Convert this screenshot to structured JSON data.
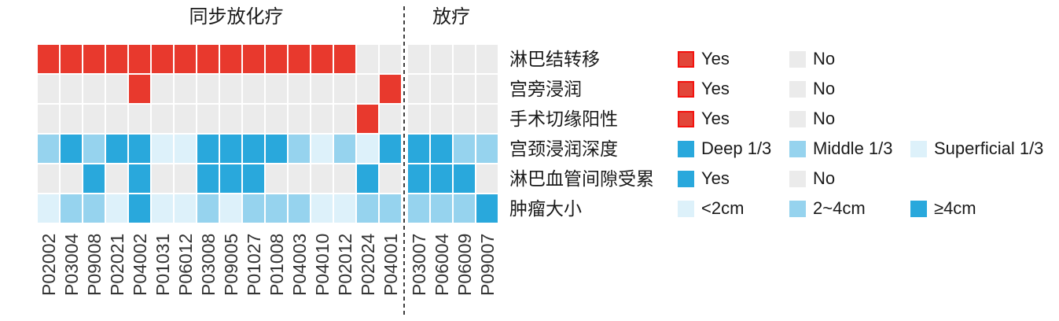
{
  "colors": {
    "red": "#e8392d",
    "gray": "#ebebeb",
    "blue_dark": "#29a8dc",
    "blue_mid": "#96d3ee",
    "blue_light": "#ddf1fa",
    "divider": "#3f3f3f",
    "patient_label_text": "#333333",
    "text": "#1a1a1a"
  },
  "chart_data": {
    "type": "heatmap",
    "title": "",
    "legend_position": "right",
    "column_groups": [
      {
        "label": "同步放化疗",
        "patients": [
          "P02002",
          "P03004",
          "P09008",
          "P02021",
          "P04002",
          "P01031",
          "P06012",
          "P03008",
          "P09005",
          "P01027",
          "P01008",
          "P04003",
          "P04010",
          "P02012",
          "P02024",
          "P04001"
        ]
      },
      {
        "label": "放疗",
        "patients": [
          "P03007",
          "P06004",
          "P06009",
          "P09007"
        ]
      }
    ],
    "rows": [
      {
        "label": "淋巴结转移",
        "scale": {
          "Yes": "red",
          "No": "gray"
        },
        "legend": [
          {
            "label": "Yes",
            "color_key": "red"
          },
          {
            "label": "No",
            "color_key": "gray"
          }
        ],
        "values": [
          "Yes",
          "Yes",
          "Yes",
          "Yes",
          "Yes",
          "Yes",
          "Yes",
          "Yes",
          "Yes",
          "Yes",
          "Yes",
          "Yes",
          "Yes",
          "Yes",
          "No",
          "No",
          "No",
          "No",
          "No",
          "No"
        ]
      },
      {
        "label": "宫旁浸润",
        "scale": {
          "Yes": "red",
          "No": "gray"
        },
        "legend": [
          {
            "label": "Yes",
            "color_key": "red"
          },
          {
            "label": "No",
            "color_key": "gray"
          }
        ],
        "values": [
          "No",
          "No",
          "No",
          "No",
          "Yes",
          "No",
          "No",
          "No",
          "No",
          "No",
          "No",
          "No",
          "No",
          "No",
          "No",
          "Yes",
          "No",
          "No",
          "No",
          "No"
        ]
      },
      {
        "label": "手术切缘阳性",
        "scale": {
          "Yes": "red",
          "No": "gray"
        },
        "legend": [
          {
            "label": "Yes",
            "color_key": "red"
          },
          {
            "label": "No",
            "color_key": "gray"
          }
        ],
        "values": [
          "No",
          "No",
          "No",
          "No",
          "No",
          "No",
          "No",
          "No",
          "No",
          "No",
          "No",
          "No",
          "No",
          "No",
          "Yes",
          "No",
          "No",
          "No",
          "No",
          "No"
        ]
      },
      {
        "label": "宫颈浸润深度",
        "scale": {
          "Deep 1/3": "blue_dark",
          "Middle 1/3": "blue_mid",
          "Superficial 1/3": "blue_light"
        },
        "legend": [
          {
            "label": "Deep 1/3",
            "color_key": "blue_dark"
          },
          {
            "label": "Middle 1/3",
            "color_key": "blue_mid"
          },
          {
            "label": "Superficial 1/3",
            "color_key": "blue_light"
          }
        ],
        "values": [
          "Middle 1/3",
          "Deep 1/3",
          "Middle 1/3",
          "Deep 1/3",
          "Deep 1/3",
          "Superficial 1/3",
          "Superficial 1/3",
          "Deep 1/3",
          "Deep 1/3",
          "Deep 1/3",
          "Deep 1/3",
          "Middle 1/3",
          "Superficial 1/3",
          "Middle 1/3",
          "Superficial 1/3",
          "Deep 1/3",
          "Deep 1/3",
          "Deep 1/3",
          "Middle 1/3",
          "Middle 1/3"
        ]
      },
      {
        "label": "淋巴血管间隙受累",
        "scale": {
          "Yes": "blue_dark",
          "No": "gray"
        },
        "legend": [
          {
            "label": "Yes",
            "color_key": "blue_dark"
          },
          {
            "label": "No",
            "color_key": "gray"
          }
        ],
        "values": [
          "No",
          "No",
          "Yes",
          "No",
          "Yes",
          "No",
          "No",
          "Yes",
          "Yes",
          "Yes",
          "No",
          "No",
          "No",
          "No",
          "Yes",
          "No",
          "Yes",
          "Yes",
          "Yes",
          "No"
        ]
      },
      {
        "label": "肿瘤大小",
        "scale": {
          "<2cm": "blue_light",
          "2~4cm": "blue_mid",
          "≥4cm": "blue_dark"
        },
        "legend": [
          {
            "label": "<2cm",
            "color_key": "blue_light"
          },
          {
            "label": "2~4cm",
            "color_key": "blue_mid"
          },
          {
            "label": "≥4cm",
            "color_key": "blue_dark"
          }
        ],
        "values": [
          "<2cm",
          "2~4cm",
          "2~4cm",
          "<2cm",
          "≥4cm",
          "<2cm",
          "<2cm",
          "2~4cm",
          "<2cm",
          "2~4cm",
          "2~4cm",
          "2~4cm",
          "<2cm",
          "<2cm",
          "2~4cm",
          "2~4cm",
          "2~4cm",
          "2~4cm",
          "2~4cm",
          "≥4cm"
        ]
      }
    ]
  }
}
